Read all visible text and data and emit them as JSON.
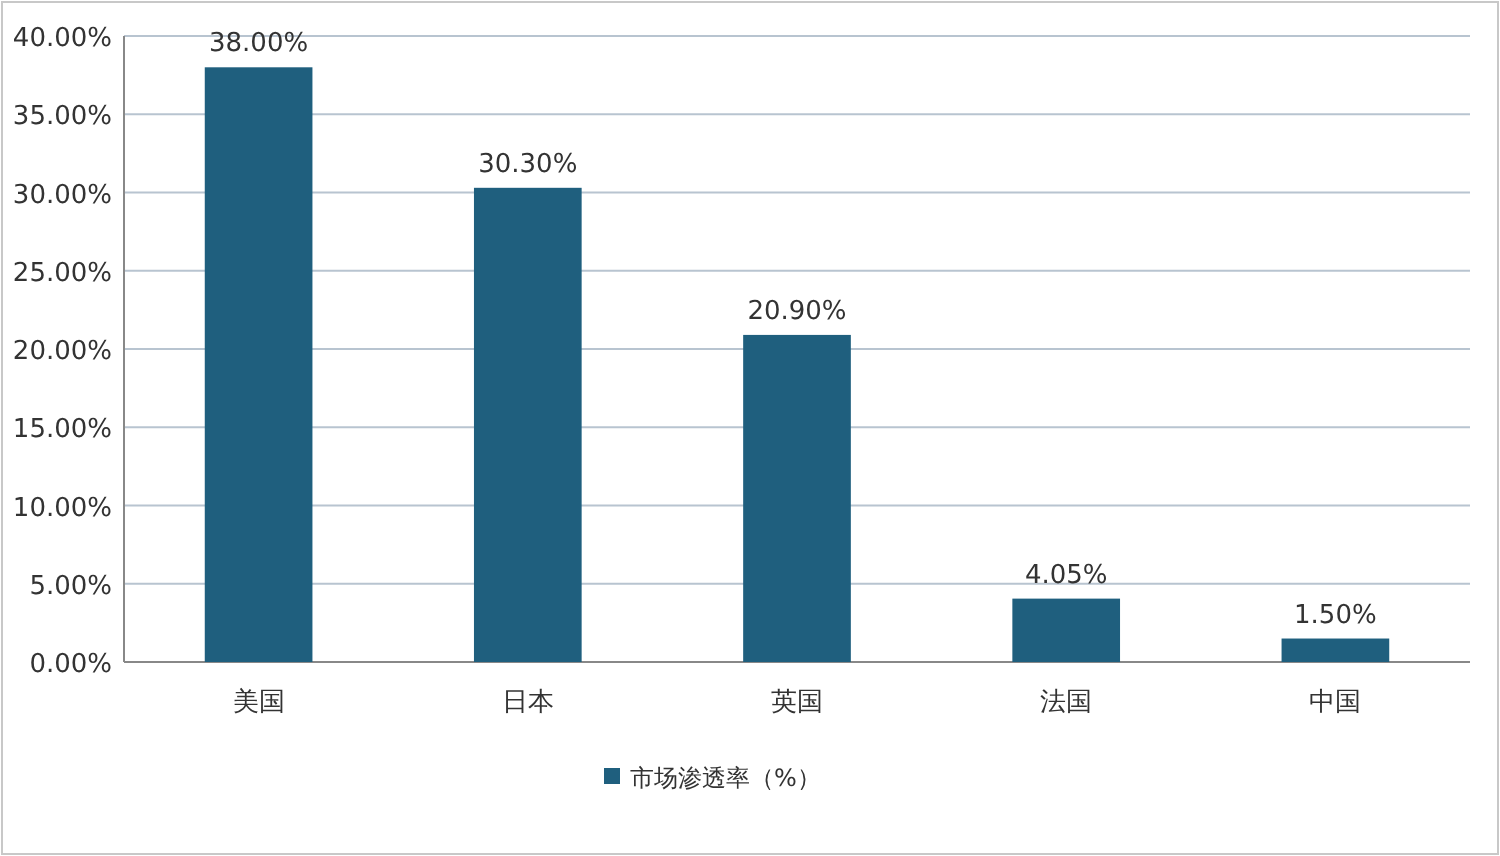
{
  "chart_data": {
    "type": "bar",
    "categories": [
      "美国",
      "日本",
      "英国",
      "法国",
      "中国"
    ],
    "series": [
      {
        "name": "市场渗透率（%）",
        "color": "#1f5f7e",
        "values": [
          38.0,
          30.3,
          20.9,
          4.05,
          1.5
        ],
        "value_labels": [
          "38.00%",
          "30.30%",
          "20.90%",
          "4.05%",
          "1.50%"
        ]
      }
    ],
    "ylim": [
      0,
      40
    ],
    "yticks": [
      {
        "value": 0,
        "label": "0.00%"
      },
      {
        "value": 5,
        "label": "5.00%"
      },
      {
        "value": 10,
        "label": "10.00%"
      },
      {
        "value": 15,
        "label": "15.00%"
      },
      {
        "value": 20,
        "label": "20.00%"
      },
      {
        "value": 25,
        "label": "25.00%"
      },
      {
        "value": 30,
        "label": "30.00%"
      },
      {
        "value": 35,
        "label": "35.00%"
      },
      {
        "value": 40,
        "label": "40.00%"
      }
    ],
    "grid": "y",
    "legend": "bottom"
  }
}
